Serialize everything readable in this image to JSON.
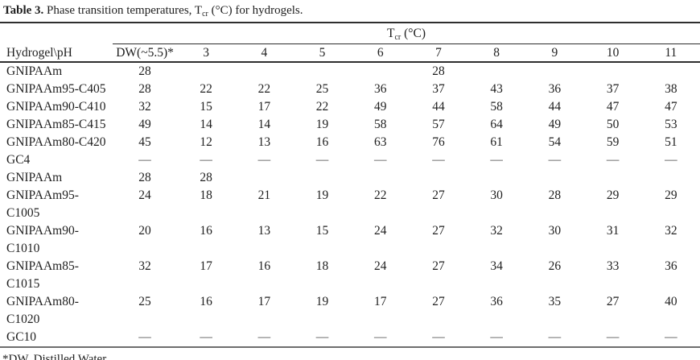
{
  "title": {
    "bold": "Table 3.",
    "pre": " Phase transition temperatures, T",
    "sub": "cr",
    "post": " (°C) for hydrogels."
  },
  "table": {
    "span_header": {
      "t": "T",
      "sub": "cr",
      "unit": " (°C)"
    },
    "row_header_label": "Hydrogel\\pH",
    "columns": [
      "DW(~5.5)*",
      "3",
      "4",
      "5",
      "6",
      "7",
      "8",
      "9",
      "10",
      "11"
    ],
    "rows": [
      {
        "label": "GNIPAAm",
        "values": [
          "28",
          "",
          "",
          "",
          "",
          "28",
          "",
          "",
          "",
          ""
        ]
      },
      {
        "label": "GNIPAAm95-C405",
        "values": [
          "28",
          "22",
          "22",
          "25",
          "36",
          "37",
          "43",
          "36",
          "37",
          "38"
        ]
      },
      {
        "label": "GNIPAAm90-C410",
        "values": [
          "32",
          "15",
          "17",
          "22",
          "49",
          "44",
          "58",
          "44",
          "47",
          "47"
        ]
      },
      {
        "label": "GNIPAAm85-C415",
        "values": [
          "49",
          "14",
          "14",
          "19",
          "58",
          "57",
          "64",
          "49",
          "50",
          "53"
        ]
      },
      {
        "label": "GNIPAAm80-C420",
        "values": [
          "45",
          "12",
          "13",
          "16",
          "63",
          "76",
          "61",
          "54",
          "59",
          "51"
        ]
      },
      {
        "label": "GC4",
        "values": [
          "—",
          "—",
          "—",
          "—",
          "—",
          "—",
          "—",
          "—",
          "—",
          "—"
        ]
      },
      {
        "label": "GNIPAAm",
        "values": [
          "28",
          "28",
          "",
          "",
          "",
          "",
          "",
          "",
          "",
          ""
        ]
      },
      {
        "label": "GNIPAAm95-\nC1005",
        "values": [
          "24",
          "18",
          "21",
          "19",
          "22",
          "27",
          "30",
          "28",
          "29",
          "29"
        ]
      },
      {
        "label": "GNIPAAm90-\nC1010",
        "values": [
          "20",
          "16",
          "13",
          "15",
          "24",
          "27",
          "32",
          "30",
          "31",
          "32"
        ]
      },
      {
        "label": "GNIPAAm85-\nC1015",
        "values": [
          "32",
          "17",
          "16",
          "18",
          "24",
          "27",
          "34",
          "26",
          "33",
          "36"
        ]
      },
      {
        "label": "GNIPAAm80-\nC1020",
        "values": [
          "25",
          "16",
          "17",
          "19",
          "17",
          "27",
          "36",
          "35",
          "27",
          "40"
        ]
      },
      {
        "label": "GC10",
        "values": [
          "—",
          "—",
          "—",
          "—",
          "—",
          "—",
          "—",
          "—",
          "—",
          "—"
        ]
      }
    ]
  },
  "footnote": "*DW, Distilled Water."
}
